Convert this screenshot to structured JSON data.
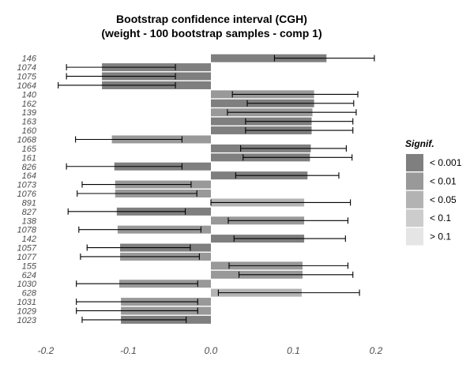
{
  "chart_data": {
    "type": "bar",
    "orientation": "horizontal",
    "error_bars": true,
    "title_lines": [
      "Bootstrap confidence interval (CGH)",
      "(weight - 100 bootstrap samples - comp 1)"
    ],
    "xlim": [
      -0.2,
      0.2
    ],
    "x_ticks": [
      "-0.2",
      "-0.1",
      "0.0",
      "0.1",
      "0.2"
    ],
    "grid": false,
    "legend_position": "right",
    "legend": {
      "title": "Signif.",
      "items": [
        {
          "label": "< 0.001",
          "color": "#7f7f7f"
        },
        {
          "label": "< 0.01",
          "color": "#999999"
        },
        {
          "label": "< 0.05",
          "color": "#b3b3b3"
        },
        {
          "label": "< 0.1",
          "color": "#cccccc"
        },
        {
          "label": "> 0.1",
          "color": "#e5e5e5"
        }
      ]
    },
    "bars": [
      {
        "label": "146",
        "value": 0.14,
        "lower": 0.077,
        "upper": 0.198,
        "signif": "< 0.001"
      },
      {
        "label": "1074",
        "value": -0.132,
        "lower": -0.175,
        "upper": -0.043,
        "signif": "< 0.001"
      },
      {
        "label": "1075",
        "value": -0.132,
        "lower": -0.175,
        "upper": -0.043,
        "signif": "< 0.001"
      },
      {
        "label": "1064",
        "value": -0.132,
        "lower": -0.185,
        "upper": -0.043,
        "signif": "< 0.001"
      },
      {
        "label": "140",
        "value": 0.125,
        "lower": 0.026,
        "upper": 0.178,
        "signif": "< 0.01"
      },
      {
        "label": "162",
        "value": 0.125,
        "lower": 0.044,
        "upper": 0.173,
        "signif": "< 0.001"
      },
      {
        "label": "139",
        "value": 0.123,
        "lower": 0.02,
        "upper": 0.176,
        "signif": "< 0.01"
      },
      {
        "label": "163",
        "value": 0.122,
        "lower": 0.042,
        "upper": 0.172,
        "signif": "< 0.001"
      },
      {
        "label": "160",
        "value": 0.122,
        "lower": 0.042,
        "upper": 0.172,
        "signif": "< 0.001"
      },
      {
        "label": "1068",
        "value": -0.12,
        "lower": -0.164,
        "upper": -0.035,
        "signif": "< 0.01"
      },
      {
        "label": "165",
        "value": 0.121,
        "lower": 0.036,
        "upper": 0.164,
        "signif": "< 0.001"
      },
      {
        "label": "161",
        "value": 0.12,
        "lower": 0.039,
        "upper": 0.171,
        "signif": "< 0.001"
      },
      {
        "label": "826",
        "value": -0.117,
        "lower": -0.175,
        "upper": -0.035,
        "signif": "< 0.001"
      },
      {
        "label": "164",
        "value": 0.117,
        "lower": 0.03,
        "upper": 0.155,
        "signif": "< 0.001"
      },
      {
        "label": "1073",
        "value": -0.116,
        "lower": -0.156,
        "upper": -0.024,
        "signif": "< 0.01"
      },
      {
        "label": "1076",
        "value": -0.116,
        "lower": -0.162,
        "upper": -0.017,
        "signif": "< 0.01"
      },
      {
        "label": "891",
        "value": 0.113,
        "lower": 0.0,
        "upper": 0.169,
        "signif": "< 0.05"
      },
      {
        "label": "827",
        "value": -0.114,
        "lower": -0.173,
        "upper": -0.031,
        "signif": "< 0.001"
      },
      {
        "label": "138",
        "value": 0.113,
        "lower": 0.021,
        "upper": 0.166,
        "signif": "< 0.01"
      },
      {
        "label": "1078",
        "value": -0.113,
        "lower": -0.16,
        "upper": -0.012,
        "signif": "< 0.01"
      },
      {
        "label": "142",
        "value": 0.113,
        "lower": 0.028,
        "upper": 0.163,
        "signif": "< 0.001"
      },
      {
        "label": "1057",
        "value": -0.11,
        "lower": -0.15,
        "upper": -0.025,
        "signif": "< 0.001"
      },
      {
        "label": "1077",
        "value": -0.11,
        "lower": -0.158,
        "upper": -0.014,
        "signif": "< 0.01"
      },
      {
        "label": "155",
        "value": 0.111,
        "lower": 0.022,
        "upper": 0.166,
        "signif": "< 0.01"
      },
      {
        "label": "624",
        "value": 0.111,
        "lower": 0.034,
        "upper": 0.172,
        "signif": "< 0.01"
      },
      {
        "label": "1030",
        "value": -0.111,
        "lower": -0.163,
        "upper": -0.016,
        "signif": "< 0.01"
      },
      {
        "label": "628",
        "value": 0.11,
        "lower": 0.009,
        "upper": 0.18,
        "signif": "< 0.05"
      },
      {
        "label": "1031",
        "value": -0.109,
        "lower": -0.163,
        "upper": -0.016,
        "signif": "< 0.01"
      },
      {
        "label": "1029",
        "value": -0.109,
        "lower": -0.163,
        "upper": -0.016,
        "signif": "< 0.01"
      },
      {
        "label": "1023",
        "value": -0.109,
        "lower": -0.156,
        "upper": -0.03,
        "signif": "< 0.001"
      }
    ]
  }
}
